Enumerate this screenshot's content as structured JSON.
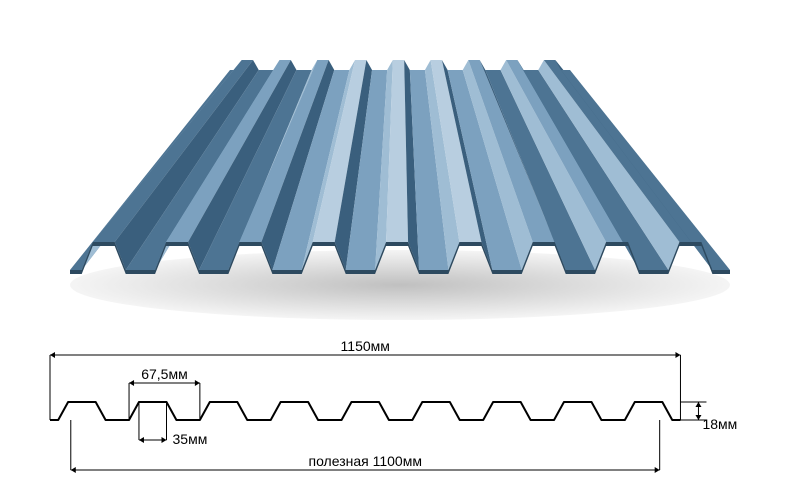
{
  "product": {
    "type": "corrugated-sheet-profile",
    "render": {
      "ribs": 9,
      "perspective_depth": 200,
      "colors": {
        "top_light": "#b8cee0",
        "top_mid": "#7ca1bf",
        "top_dark": "#4d7493",
        "side_light": "#9fbdd4",
        "side_dark": "#3a5f7d",
        "front_edge": "#2d4a60",
        "shadow": "#d4d4d4",
        "background": "#ffffff"
      }
    },
    "schematic": {
      "ribs": 9,
      "rib_top_width_mm": 35,
      "rib_pitch_mm": 67.5,
      "rib_height_mm": 18,
      "total_width_mm": 1150,
      "useful_width_mm": 1100,
      "line_color": "#000000",
      "line_width": 2,
      "dim_line_width": 1,
      "font_size": 14,
      "labels": {
        "total_width": "1150мм",
        "pitch": "67,5мм",
        "top_width": "35мм",
        "useful_width": "полезная 1100мм",
        "height": "18мм"
      }
    }
  }
}
